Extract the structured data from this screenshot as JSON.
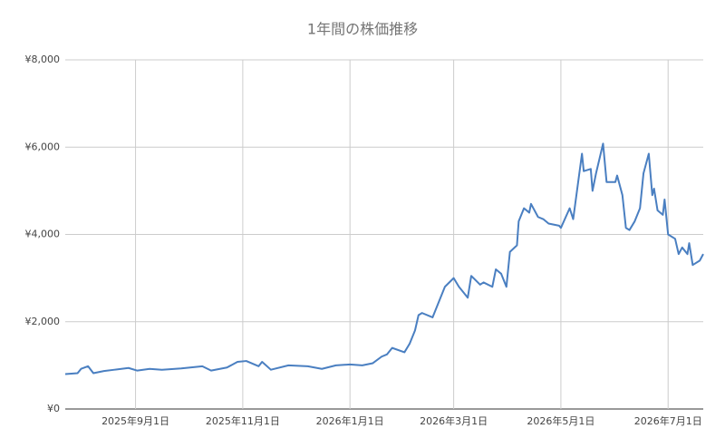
{
  "chart_data": {
    "type": "line",
    "title": "1年間の株価推移",
    "color": "#4a7fc1",
    "grid": true,
    "x": [
      "2025-07-23",
      "2025-07-30",
      "2025-08-01",
      "2025-08-05",
      "2025-08-08",
      "2025-08-14",
      "2025-08-20",
      "2025-08-28",
      "2025-09-02",
      "2025-09-09",
      "2025-09-16",
      "2025-09-27",
      "2025-10-09",
      "2025-10-14",
      "2025-10-23",
      "2025-10-29",
      "2025-11-03",
      "2025-11-10",
      "2025-11-12",
      "2025-11-17",
      "2025-11-27",
      "2025-12-08",
      "2025-12-16",
      "2025-12-24",
      "2026-01-01",
      "2026-01-08",
      "2026-01-14",
      "2026-01-19",
      "2026-01-22",
      "2026-01-25",
      "2026-02-01",
      "2026-02-04",
      "2026-02-07",
      "2026-02-09",
      "2026-02-11",
      "2026-02-17",
      "2026-02-24",
      "2026-03-01",
      "2026-03-04",
      "2026-03-09",
      "2026-03-11",
      "2026-03-16",
      "2026-03-18",
      "2026-03-23",
      "2026-03-25",
      "2026-03-28",
      "2026-03-31",
      "2026-04-02",
      "2026-04-06",
      "2026-04-07",
      "2026-04-10",
      "2026-04-13",
      "2026-04-14",
      "2026-04-18",
      "2026-04-21",
      "2026-04-24",
      "2026-04-30",
      "2026-05-01",
      "2026-05-06",
      "2026-05-08",
      "2026-05-13",
      "2026-05-14",
      "2026-05-18",
      "2026-05-19",
      "2026-05-21",
      "2026-05-25",
      "2026-05-27",
      "2026-06-01",
      "2026-06-02",
      "2026-06-05",
      "2026-06-07",
      "2026-06-09",
      "2026-06-12",
      "2026-06-15",
      "2026-06-17",
      "2026-06-20",
      "2026-06-22",
      "2026-06-23",
      "2026-06-25",
      "2026-06-28",
      "2026-06-29",
      "2026-07-01",
      "2026-07-05",
      "2026-07-07",
      "2026-07-09",
      "2026-07-12",
      "2026-07-13",
      "2026-07-15",
      "2026-07-19",
      "2026-07-21"
    ],
    "values": [
      800,
      820,
      920,
      980,
      820,
      870,
      900,
      940,
      880,
      920,
      900,
      930,
      980,
      880,
      950,
      1080,
      1100,
      980,
      1080,
      900,
      1000,
      980,
      920,
      1000,
      1020,
      1000,
      1050,
      1200,
      1250,
      1400,
      1300,
      1500,
      1800,
      2150,
      2200,
      2100,
      2800,
      3000,
      2800,
      2550,
      3050,
      2850,
      2900,
      2800,
      3200,
      3100,
      2800,
      3600,
      3750,
      4300,
      4600,
      4500,
      4700,
      4400,
      4350,
      4250,
      4200,
      4150,
      4600,
      4350,
      5850,
      5450,
      5500,
      5000,
      5400,
      6080,
      5200,
      5200,
      5350,
      4900,
      4150,
      4100,
      4300,
      4600,
      5400,
      5850,
      4900,
      5050,
      4550,
      4450,
      4800,
      4000,
      3900,
      3550,
      3700,
      3550,
      3800,
      3300,
      3400,
      3550
    ],
    "xlim": [
      "2025-07-23",
      "2026-07-21"
    ],
    "xticks": [
      {
        "value": "2025-09-01",
        "label": "2025年9月1日"
      },
      {
        "value": "2025-11-01",
        "label": "2025年11月1日"
      },
      {
        "value": "2026-01-01",
        "label": "2026年1月1日"
      },
      {
        "value": "2026-03-01",
        "label": "2026年3月1日"
      },
      {
        "value": "2026-05-01",
        "label": "2026年5月1日"
      },
      {
        "value": "2026-07-01",
        "label": "2026年7月1日"
      }
    ],
    "ylim": [
      0,
      8000
    ],
    "yticks": [
      {
        "value": 0,
        "label": "¥0"
      },
      {
        "value": 2000,
        "label": "¥2,000"
      },
      {
        "value": 4000,
        "label": "¥4,000"
      },
      {
        "value": 6000,
        "label": "¥6,000"
      },
      {
        "value": 8000,
        "label": "¥8,000"
      }
    ]
  }
}
